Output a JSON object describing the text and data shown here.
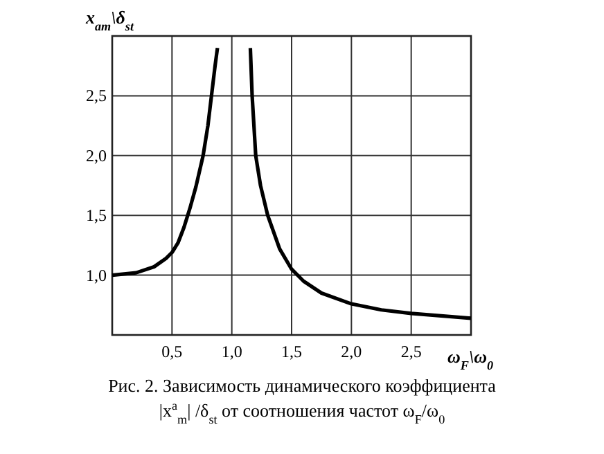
{
  "chart_data": {
    "type": "line",
    "xlabel": "ω$_{F}$\\ω$_{0}$",
    "ylabel": "x$_{am}$\\δ$_{st}$",
    "xlim": [
      0,
      3
    ],
    "ylim": [
      0.5,
      3
    ],
    "xticks": [
      {
        "value": 0.5,
        "label": "0,5"
      },
      {
        "value": 1,
        "label": "1,0"
      },
      {
        "value": 1.5,
        "label": "1,5"
      },
      {
        "value": 2,
        "label": "2,0"
      },
      {
        "value": 2.5,
        "label": "2,5"
      }
    ],
    "yticks": [
      {
        "value": 1,
        "label": "1,0"
      },
      {
        "value": 1.5,
        "label": "1,5"
      },
      {
        "value": 2,
        "label": "2,0"
      },
      {
        "value": 2.5,
        "label": "2,5"
      }
    ],
    "grid": true,
    "marker": "none",
    "line_style": "solid",
    "series": [
      {
        "color": "#000000",
        "x": [
          0,
          0.2,
          0.35,
          0.45,
          0.5,
          0.55,
          0.6,
          0.65,
          0.7,
          0.76,
          0.8,
          0.83,
          0.86,
          0.88
        ],
        "values": [
          1,
          1.02,
          1.07,
          1.14,
          1.19,
          1.27,
          1.4,
          1.56,
          1.74,
          2,
          2.25,
          2.5,
          2.75,
          2.9
        ]
      },
      {
        "color": "#000000",
        "x": [
          1.155,
          1.17,
          1.2,
          1.24,
          1.3,
          1.4,
          1.5,
          1.6,
          1.75,
          2,
          2.25,
          2.5,
          2.75,
          3
        ],
        "values": [
          2.9,
          2.5,
          2,
          1.75,
          1.5,
          1.22,
          1.05,
          0.95,
          0.85,
          0.76,
          0.71,
          0.68,
          0.66,
          0.64
        ]
      }
    ],
    "annotations": [
      "Рис. 2. Зависимость динамического коэффициента",
      "|x$^{а}$$_{m}$| /δ$_{st}$ от  соотношения частот ω$_{F}$/ω$_{0}$"
    ]
  }
}
